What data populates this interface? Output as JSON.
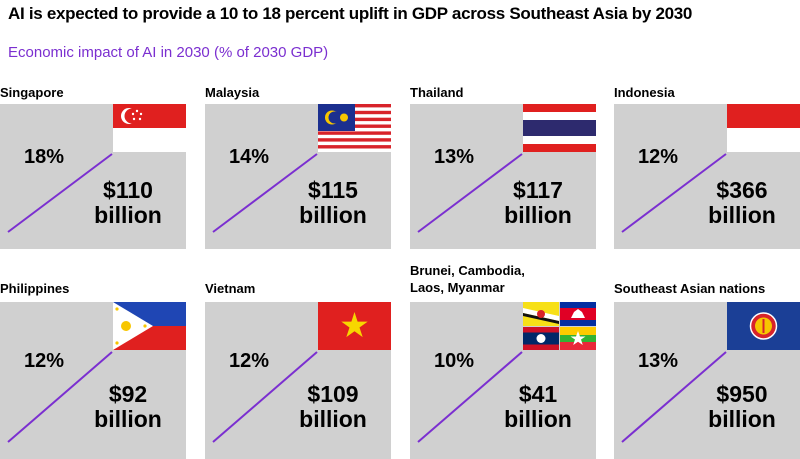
{
  "header": {
    "title": "AI is expected to provide a 10 to 18 percent uplift in GDP across Southeast Asia by 2030",
    "subtitle": "Economic impact of AI in 2030 (% of 2030 GDP)"
  },
  "colors": {
    "accent": "#7b2fd0",
    "tile_bg": "#d0d0d0"
  },
  "chart_data": {
    "type": "table",
    "title": "AI is expected to provide a 10 to 18 percent uplift in GDP across Southeast Asia by 2030",
    "subtitle": "Economic impact of AI in 2030 (% of 2030 GDP)",
    "categories": [
      "Singapore",
      "Malaysia",
      "Thailand",
      "Indonesia",
      "Philippines",
      "Vietnam",
      "Brunei, Cambodia, Laos, Myanmar",
      "Southeast Asian nations"
    ],
    "series": [
      {
        "name": "% of 2030 GDP",
        "values": [
          18,
          14,
          13,
          12,
          12,
          12,
          10,
          13
        ]
      },
      {
        "name": "billion",
        "values": [
          110,
          115,
          117,
          366,
          92,
          109,
          41,
          950
        ]
      }
    ]
  },
  "tiles": [
    {
      "label": "Singapore",
      "percent": "18%",
      "amount": "$110",
      "unit": "billion",
      "flag": "singapore-flag"
    },
    {
      "label": "Malaysia",
      "percent": "14%",
      "amount": "$115",
      "unit": "billion",
      "flag": "malaysia-flag"
    },
    {
      "label": "Thailand",
      "percent": "13%",
      "amount": "$117",
      "unit": "billion",
      "flag": "thailand-flag"
    },
    {
      "label": "Indonesia",
      "percent": "12%",
      "amount": "$366",
      "unit": "billion",
      "flag": "indonesia-flag"
    },
    {
      "label": "Philippines",
      "percent": "12%",
      "amount": "$92",
      "unit": "billion",
      "flag": "philippines-flag"
    },
    {
      "label": "Vietnam",
      "percent": "12%",
      "amount": "$109",
      "unit": "billion",
      "flag": "vietnam-flag"
    },
    {
      "label": "Brunei, Cambodia,\nLaos, Myanmar",
      "percent": "10%",
      "amount": "$41",
      "unit": "billion",
      "flag": "brunei-cambodia-laos-myanmar-flags"
    },
    {
      "label": "Southeast Asian nations",
      "percent": "13%",
      "amount": "$950",
      "unit": "billion",
      "flag": "asean-flag"
    }
  ]
}
